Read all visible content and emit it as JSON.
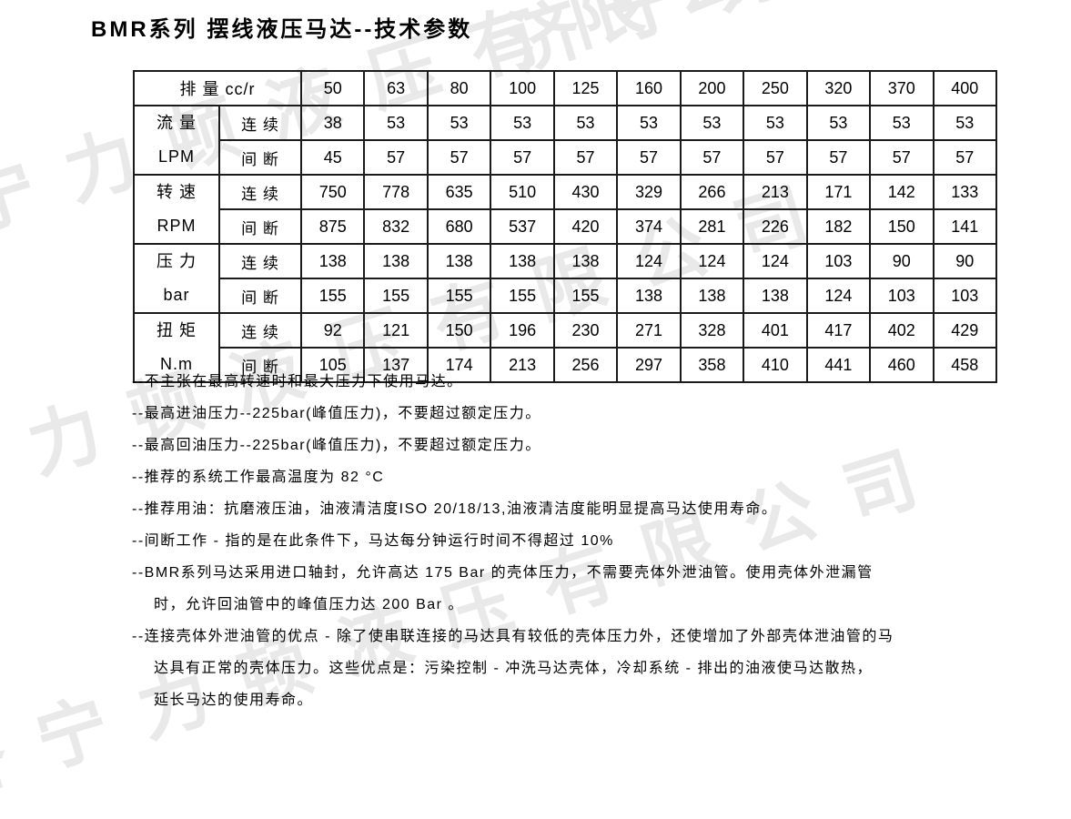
{
  "page": {
    "title": "BMR系列 摆线液压马达--技术参数"
  },
  "watermark": {
    "text": "济宁力顿液压有限公司",
    "color": "#e9e9e9"
  },
  "table": {
    "corner_label": "排 量 cc/r",
    "columns": [
      "50",
      "63",
      "80",
      "100",
      "125",
      "160",
      "200",
      "250",
      "320",
      "370",
      "400"
    ],
    "groups": [
      {
        "name": "流 量",
        "unit": "LPM",
        "rows": [
          {
            "mode": "连 续",
            "values": [
              "38",
              "53",
              "53",
              "53",
              "53",
              "53",
              "53",
              "53",
              "53",
              "53",
              "53"
            ]
          },
          {
            "mode": "间 断",
            "values": [
              "45",
              "57",
              "57",
              "57",
              "57",
              "57",
              "57",
              "57",
              "57",
              "57",
              "57"
            ]
          }
        ]
      },
      {
        "name": "转 速",
        "unit": "RPM",
        "rows": [
          {
            "mode": "连 续",
            "values": [
              "750",
              "778",
              "635",
              "510",
              "430",
              "329",
              "266",
              "213",
              "171",
              "142",
              "133"
            ]
          },
          {
            "mode": "间 断",
            "values": [
              "875",
              "832",
              "680",
              "537",
              "420",
              "374",
              "281",
              "226",
              "182",
              "150",
              "141"
            ]
          }
        ]
      },
      {
        "name": "压 力",
        "unit": "bar",
        "rows": [
          {
            "mode": "连 续",
            "values": [
              "138",
              "138",
              "138",
              "138",
              "138",
              "124",
              "124",
              "124",
              "103",
              "90",
              "90"
            ]
          },
          {
            "mode": "间 断",
            "values": [
              "155",
              "155",
              "155",
              "155",
              "155",
              "138",
              "138",
              "138",
              "124",
              "103",
              "103"
            ]
          }
        ]
      },
      {
        "name": "扭 矩",
        "unit": "N.m",
        "rows": [
          {
            "mode": "连 续",
            "values": [
              "92",
              "121",
              "150",
              "196",
              "230",
              "271",
              "328",
              "401",
              "417",
              "402",
              "429"
            ]
          },
          {
            "mode": "间 断",
            "values": [
              "105",
              "137",
              "174",
              "213",
              "256",
              "297",
              "358",
              "410",
              "441",
              "460",
              "458"
            ]
          }
        ]
      }
    ]
  },
  "notes": [
    {
      "text": "--不主张在最高转速时和最大压力下使用马达。",
      "indent": 0
    },
    {
      "text": "--最高进油压力--225bar(峰值压力)，不要超过额定压力。",
      "indent": 0
    },
    {
      "text": "--最高回油压力--225bar(峰值压力)，不要超过额定压力。",
      "indent": 0
    },
    {
      "text": "--推荐的系统工作最高温度为 82 °C",
      "indent": 0
    },
    {
      "text": "--推荐用油：抗磨液压油，油液清洁度ISO 20/18/13,油液清洁度能明显提高马达使用寿命。",
      "indent": 0
    },
    {
      "text": "--间断工作 - 指的是在此条件下，马达每分钟运行时间不得超过 10%",
      "indent": 0
    },
    {
      "text": "--BMR系列马达采用进口轴封，允许高达 175 Bar 的壳体压力，不需要壳体外泄油管。使用壳体外泄漏管",
      "indent": 0
    },
    {
      "text": "时，允许回油管中的峰值压力达 200 Bar 。",
      "indent": 1
    },
    {
      "text": "--连接壳体外泄油管的优点 - 除了使串联连接的马达具有较低的壳体压力外，还使增加了外部壳体泄油管的马",
      "indent": 0
    },
    {
      "text": "达具有正常的壳体压力。这些优点是：污染控制 - 冲洗马达壳体，冷却系统 - 排出的油液使马达散热，",
      "indent": 1
    },
    {
      "text": "延长马达的使用寿命。",
      "indent": 1
    }
  ]
}
